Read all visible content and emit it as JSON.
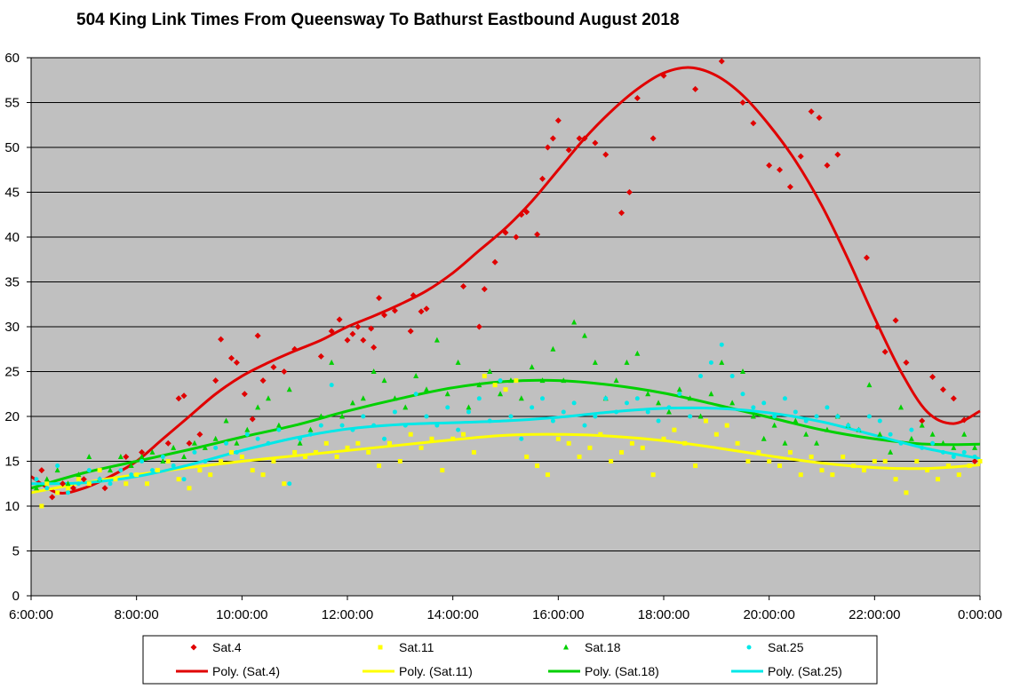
{
  "chart_data": {
    "type": "scatter",
    "title": "504 King Link Times From Queensway To Bathurst Eastbound August 2018",
    "xlabel": "",
    "ylabel": "",
    "xlim": [
      6,
      24
    ],
    "ylim": [
      0,
      60
    ],
    "x_ticks": [
      6,
      8,
      10,
      12,
      14,
      16,
      18,
      20,
      22,
      24
    ],
    "x_tick_labels": [
      "6:00:00",
      "8:00:00",
      "10:00:00",
      "12:00:00",
      "14:00:00",
      "16:00:00",
      "18:00:00",
      "20:00:00",
      "22:00:00",
      "0:00:00"
    ],
    "y_ticks": [
      0,
      5,
      10,
      15,
      20,
      25,
      30,
      35,
      40,
      45,
      50,
      55,
      60
    ],
    "grid": "horizontal",
    "plot_background": "#c0c0c0",
    "legend_position": "bottom",
    "series": [
      {
        "name": "Sat.4",
        "color": "#e00000",
        "marker": "diamond",
        "x": [
          6.2,
          6.4,
          6.6,
          6.8,
          7.0,
          7.4,
          7.8,
          8.1,
          8.6,
          8.8,
          8.9,
          9.0,
          9.2,
          9.5,
          9.6,
          9.8,
          9.9,
          10.05,
          10.2,
          10.3,
          10.4,
          10.6,
          10.8,
          11.0,
          11.5,
          11.7,
          11.85,
          12.0,
          12.1,
          12.2,
          12.3,
          12.45,
          12.5,
          12.6,
          12.7,
          12.9,
          13.2,
          13.25,
          13.4,
          13.5,
          14.2,
          14.5,
          14.6,
          14.8,
          15.0,
          15.2,
          15.3,
          15.4,
          15.6,
          15.7,
          15.8,
          15.9,
          16.0,
          16.2,
          16.4,
          16.5,
          16.7,
          16.9,
          17.2,
          17.35,
          17.5,
          17.8,
          18.0,
          18.6,
          19.1,
          19.5,
          19.7,
          20.0,
          20.2,
          20.4,
          20.6,
          20.8,
          20.95,
          21.1,
          21.3,
          21.85,
          22.05,
          22.2,
          22.4,
          22.6,
          22.9,
          23.1,
          23.3,
          23.5,
          23.7,
          23.9
        ],
        "y": [
          14,
          11,
          12.5,
          12,
          13,
          12,
          15.5,
          16,
          17,
          22,
          22.3,
          17,
          18,
          24,
          28.6,
          26.5,
          26,
          22.5,
          19.7,
          29,
          24,
          25.5,
          25,
          27.5,
          26.7,
          29.5,
          30.8,
          28.5,
          29.2,
          30,
          28.5,
          29.8,
          27.7,
          33.2,
          31.3,
          31.8,
          29.5,
          33.5,
          31.7,
          32,
          34.5,
          30,
          34.2,
          37.2,
          40.5,
          40,
          42.5,
          42.8,
          40.3,
          46.5,
          50,
          51,
          53,
          49.7,
          51,
          51,
          50.5,
          49.2,
          42.7,
          45,
          55.5,
          51,
          58,
          56.5,
          59.6,
          55,
          52.7,
          48,
          47.5,
          45.6,
          49,
          54,
          53.3,
          48,
          49.2,
          37.7,
          30,
          27.2,
          30.7,
          26,
          19.5,
          24.4,
          23,
          22,
          19.6,
          15
        ]
      },
      {
        "name": "Sat.11",
        "color": "#ffff00",
        "marker": "square",
        "x": [
          6.2,
          6.3,
          6.5,
          6.7,
          6.9,
          7.1,
          7.3,
          7.6,
          7.8,
          8.0,
          8.2,
          8.4,
          8.6,
          8.8,
          9.0,
          9.2,
          9.4,
          9.6,
          9.8,
          10.0,
          10.2,
          10.4,
          10.6,
          10.8,
          11.0,
          11.2,
          11.4,
          11.6,
          11.8,
          12.0,
          12.2,
          12.4,
          12.6,
          12.8,
          13.0,
          13.2,
          13.4,
          13.6,
          13.8,
          14.0,
          14.2,
          14.4,
          14.6,
          14.8,
          15.0,
          15.2,
          15.4,
          15.6,
          15.8,
          16.0,
          16.2,
          16.4,
          16.6,
          16.8,
          17.0,
          17.2,
          17.4,
          17.6,
          17.8,
          18.0,
          18.2,
          18.4,
          18.6,
          18.8,
          19.0,
          19.2,
          19.4,
          19.6,
          19.8,
          20.0,
          20.2,
          20.4,
          20.6,
          20.8,
          21.0,
          21.2,
          21.4,
          21.6,
          21.8,
          22.0,
          22.2,
          22.4,
          22.6,
          22.8,
          23.0,
          23.2,
          23.4,
          23.6,
          23.8,
          24.0
        ],
        "y": [
          10,
          12.5,
          11.5,
          12,
          13,
          12.5,
          14,
          13,
          12.5,
          13.5,
          12.5,
          14,
          15,
          13,
          12,
          14,
          13.5,
          15,
          16,
          15.5,
          14,
          13.5,
          15,
          12.5,
          16,
          15.5,
          16,
          17,
          15.5,
          16.5,
          17,
          16,
          14.5,
          17,
          15,
          18,
          16.5,
          17.5,
          14,
          17.5,
          18,
          16,
          24.5,
          23.5,
          23,
          24,
          15.5,
          14.5,
          13.5,
          17.5,
          17,
          15.5,
          16.5,
          18,
          15,
          16,
          17,
          16.5,
          13.5,
          17.5,
          18.5,
          17,
          14.5,
          19.5,
          18,
          19,
          17,
          15,
          16,
          15,
          14.5,
          16,
          13.5,
          15.5,
          14,
          13.5,
          15.5,
          14.5,
          14,
          15,
          15,
          13,
          11.5,
          15,
          14,
          13,
          14.5,
          13.5,
          14.5,
          15
        ]
      },
      {
        "name": "Sat.18",
        "color": "#00d000",
        "marker": "triangle",
        "x": [
          6.1,
          6.3,
          6.5,
          6.7,
          6.9,
          7.1,
          7.3,
          7.5,
          7.7,
          7.9,
          8.1,
          8.3,
          8.5,
          8.7,
          8.9,
          9.1,
          9.3,
          9.5,
          9.7,
          9.9,
          10.1,
          10.3,
          10.5,
          10.7,
          10.9,
          11.1,
          11.3,
          11.5,
          11.7,
          11.9,
          12.1,
          12.3,
          12.5,
          12.7,
          12.9,
          13.1,
          13.3,
          13.5,
          13.7,
          13.9,
          14.1,
          14.3,
          14.5,
          14.7,
          14.9,
          15.1,
          15.3,
          15.5,
          15.7,
          15.9,
          16.1,
          16.3,
          16.5,
          16.7,
          16.9,
          17.1,
          17.3,
          17.5,
          17.7,
          17.9,
          18.1,
          18.3,
          18.5,
          18.7,
          18.9,
          19.1,
          19.3,
          19.5,
          19.7,
          19.9,
          20.1,
          20.3,
          20.5,
          20.7,
          20.9,
          21.1,
          21.3,
          21.5,
          21.7,
          21.9,
          22.1,
          22.3,
          22.5,
          22.7,
          22.9,
          23.1,
          23.3,
          23.5,
          23.7,
          23.9
        ],
        "y": [
          12,
          13,
          14,
          12.5,
          13.5,
          15.5,
          13,
          14,
          15.5,
          14.5,
          15.5,
          16,
          15,
          16.5,
          15.5,
          17,
          16.5,
          17.5,
          19.5,
          17,
          18.5,
          21,
          22,
          19,
          23,
          17,
          18.5,
          20,
          26,
          20,
          21.5,
          22,
          25,
          24,
          22,
          21,
          24.5,
          23,
          28.5,
          22.5,
          26,
          21,
          23.5,
          25,
          22.5,
          24,
          22,
          25.5,
          24,
          27.5,
          24,
          30.5,
          29,
          26,
          22,
          24,
          26,
          27,
          22.5,
          21.5,
          20.5,
          23,
          22,
          20,
          22.5,
          26,
          21.5,
          25,
          20,
          17.5,
          19,
          17,
          19.5,
          18,
          17,
          18.5,
          20,
          19,
          18.5,
          23.5,
          18,
          16,
          21,
          17.5,
          19,
          18,
          17,
          16.5,
          18,
          16.5
        ]
      },
      {
        "name": "Sat.25",
        "color": "#00e8e8",
        "marker": "circle",
        "x": [
          6.1,
          6.3,
          6.5,
          6.7,
          6.9,
          7.1,
          7.3,
          7.5,
          7.7,
          7.9,
          8.1,
          8.3,
          8.5,
          8.7,
          8.9,
          9.1,
          9.3,
          9.5,
          9.7,
          9.9,
          10.1,
          10.3,
          10.5,
          10.7,
          10.9,
          11.1,
          11.3,
          11.5,
          11.7,
          11.9,
          12.1,
          12.3,
          12.5,
          12.7,
          12.9,
          13.1,
          13.3,
          13.5,
          13.7,
          13.9,
          14.1,
          14.3,
          14.5,
          14.7,
          14.9,
          15.1,
          15.3,
          15.5,
          15.7,
          15.9,
          16.1,
          16.3,
          16.5,
          16.7,
          16.9,
          17.1,
          17.3,
          17.5,
          17.7,
          17.9,
          18.1,
          18.3,
          18.5,
          18.7,
          18.9,
          19.1,
          19.3,
          19.5,
          19.7,
          19.9,
          20.1,
          20.3,
          20.5,
          20.7,
          20.9,
          21.1,
          21.3,
          21.5,
          21.7,
          21.9,
          22.1,
          22.3,
          22.5,
          22.7,
          22.9,
          23.1,
          23.3,
          23.5,
          23.7,
          23.9
        ],
        "y": [
          13,
          12,
          14.5,
          11.5,
          12.5,
          14,
          13,
          12.5,
          14,
          13.5,
          15,
          14,
          15.5,
          14.5,
          13,
          16,
          15,
          16.5,
          17,
          16,
          18,
          17.5,
          17,
          18.5,
          12.5,
          17.5,
          18,
          19,
          23.5,
          19,
          18.5,
          20,
          19,
          17.5,
          20.5,
          19,
          22.5,
          20,
          19,
          21,
          18.5,
          20.5,
          22,
          19.5,
          24,
          20,
          17.5,
          21,
          22,
          19.5,
          20.5,
          21.5,
          19,
          20,
          22,
          20.5,
          21.5,
          22,
          20.5,
          19.5,
          21,
          22.5,
          20,
          24.5,
          26,
          28,
          24.5,
          22.5,
          21,
          21.5,
          20,
          22,
          20.5,
          19.5,
          20,
          21,
          20,
          19,
          18.5,
          20,
          19.5,
          18,
          17,
          18.5,
          16.5,
          17,
          16,
          15.5,
          16,
          15.5
        ]
      }
    ],
    "trendlines": [
      {
        "name": "Poly. (Sat.4)",
        "color": "#e00000",
        "x": [
          6.0,
          6.5,
          7.0,
          7.5,
          8.0,
          8.5,
          9.0,
          9.5,
          10.0,
          10.5,
          11.0,
          11.5,
          12.0,
          12.5,
          13.0,
          13.5,
          14.0,
          14.5,
          15.0,
          15.5,
          16.0,
          16.5,
          17.0,
          17.5,
          18.0,
          18.5,
          19.0,
          19.5,
          20.0,
          20.5,
          21.0,
          21.5,
          22.0,
          22.5,
          23.0,
          23.5,
          24.0
        ],
        "y": [
          13.3,
          11.5,
          12.0,
          13.3,
          15.0,
          17.5,
          20.0,
          22.5,
          24.5,
          26.0,
          27.3,
          28.5,
          30.0,
          31.2,
          32.5,
          34.0,
          36.0,
          38.5,
          41.0,
          44.0,
          47.5,
          51.0,
          54.0,
          56.5,
          58.3,
          58.9,
          58.0,
          55.8,
          52.5,
          48.5,
          43.5,
          37.5,
          31.0,
          25.0,
          20.5,
          19.2,
          20.6
        ]
      },
      {
        "name": "Poly. (Sat.11)",
        "color": "#ffff00",
        "x": [
          6.0,
          7.0,
          8.0,
          9.0,
          10.0,
          11.0,
          12.0,
          13.0,
          14.0,
          15.0,
          16.0,
          17.0,
          18.0,
          19.0,
          20.0,
          21.0,
          22.0,
          23.0,
          24.0
        ],
        "y": [
          11.5,
          12.6,
          13.5,
          14.3,
          15.0,
          15.6,
          16.2,
          16.8,
          17.4,
          17.9,
          18.0,
          17.8,
          17.3,
          16.5,
          15.6,
          14.8,
          14.3,
          14.2,
          14.6
        ]
      },
      {
        "name": "Poly. (Sat.18)",
        "color": "#00d000",
        "x": [
          6.0,
          7.0,
          8.0,
          9.0,
          10.0,
          11.0,
          12.0,
          13.0,
          14.0,
          15.0,
          16.0,
          17.0,
          18.0,
          19.0,
          20.0,
          21.0,
          22.0,
          23.0,
          24.0
        ],
        "y": [
          12.0,
          13.7,
          15.0,
          16.3,
          17.7,
          19.0,
          20.6,
          22.0,
          23.2,
          23.9,
          24.0,
          23.5,
          22.6,
          21.3,
          19.9,
          18.5,
          17.5,
          16.9,
          16.9
        ]
      },
      {
        "name": "Poly. (Sat.25)",
        "color": "#00e8e8",
        "x": [
          6.0,
          7.0,
          8.0,
          9.0,
          10.0,
          11.0,
          12.0,
          13.0,
          14.0,
          15.0,
          16.0,
          17.0,
          18.0,
          19.0,
          20.0,
          21.0,
          22.0,
          23.0,
          24.0
        ],
        "y": [
          12.5,
          12.6,
          13.3,
          14.6,
          16.2,
          17.6,
          18.6,
          19.1,
          19.3,
          19.5,
          19.9,
          20.5,
          20.9,
          20.9,
          20.4,
          19.4,
          17.9,
          16.4,
          15.3
        ]
      }
    ]
  }
}
